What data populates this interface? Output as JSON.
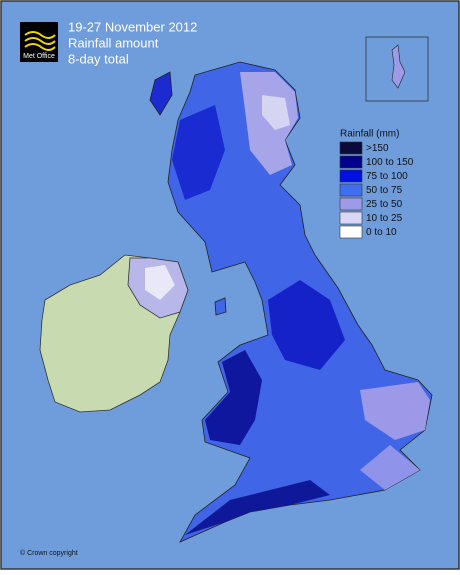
{
  "header": {
    "logo": "Met Office",
    "title": "19-27 November 2012",
    "subtitle": "Rainfall amount",
    "note": "8-day total"
  },
  "legend": {
    "title": "Rainfall (mm)",
    "items": [
      {
        "label": ">150",
        "color": "#0a0a3c"
      },
      {
        "label": "100 to 150",
        "color": "#00008c"
      },
      {
        "label": "75 to 100",
        "color": "#0010e0"
      },
      {
        "label": "50 to 75",
        "color": "#3f6ff0"
      },
      {
        "label": "25 to 50",
        "color": "#9d9be8"
      },
      {
        "label": "10 to 25",
        "color": "#d9d8f4"
      },
      {
        "label": "0 to 10",
        "color": "#ffffff"
      }
    ]
  },
  "footer": {
    "copyright": "© Crown copyright"
  }
}
